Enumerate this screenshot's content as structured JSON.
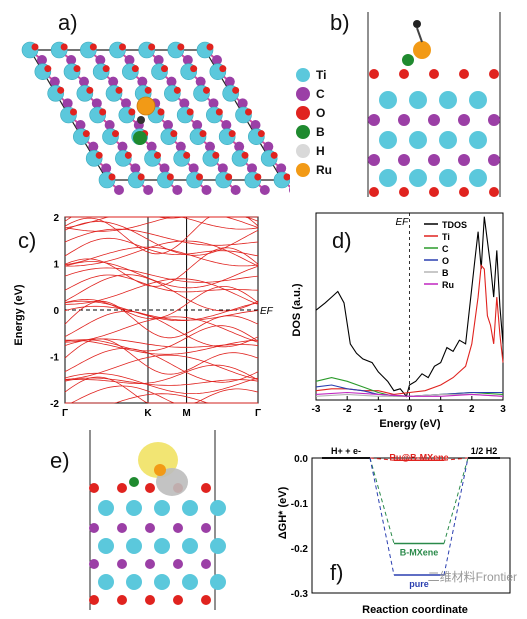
{
  "panels": {
    "a": "a)",
    "b": "b)",
    "c": "c)",
    "d": "d)",
    "e": "e)",
    "f": "f)"
  },
  "atom_legend": [
    {
      "label": "Ti",
      "color": "#5bc8dc"
    },
    {
      "label": "C",
      "color": "#9b3fa6"
    },
    {
      "label": "O",
      "color": "#e0231f"
    },
    {
      "label": "B",
      "color": "#1f8a2f"
    },
    {
      "label": "H",
      "color": "#d9d9d9"
    },
    {
      "label": "Ru",
      "color": "#f29a16"
    }
  ],
  "chart_data": [
    {
      "type": "line",
      "panel": "c",
      "ylabel": "Energy (eV)",
      "xticks": [
        "Γ",
        "K",
        "M",
        "Γ"
      ],
      "yticks": [
        "-2",
        "-1",
        "0",
        "1",
        "2"
      ],
      "ylim": [
        -2,
        2
      ],
      "fermi_label": "EF",
      "color": "#e0231f"
    },
    {
      "type": "line",
      "panel": "d",
      "ylabel": "DOS (a.u.)",
      "xlabel": "Energy (eV)",
      "fermi_label": "EF",
      "xlim": [
        -3,
        3
      ],
      "xticks": [
        "-3",
        "-2",
        "-1",
        "0",
        "1",
        "2",
        "3"
      ],
      "legend_placement": "top-right",
      "series": [
        {
          "name": "TDOS",
          "color": "#000000",
          "x": [
            -3,
            -2.7,
            -2.5,
            -2.3,
            -2.1,
            -1.9,
            -1.7,
            -1.5,
            -1.2,
            -1,
            -0.7,
            -0.5,
            -0.3,
            -0.1,
            0,
            0.2,
            0.4,
            0.6,
            0.8,
            1,
            1.2,
            1.4,
            1.6,
            1.8,
            2,
            2.1,
            2.2,
            2.3,
            2.4,
            2.5,
            2.6,
            2.7,
            2.8,
            2.9,
            3
          ],
          "y": [
            0.48,
            0.52,
            0.55,
            0.58,
            0.52,
            0.3,
            0.25,
            0.22,
            0.2,
            0.15,
            0.1,
            0.05,
            0.06,
            0.02,
            0.08,
            0.1,
            0.14,
            0.12,
            0.18,
            0.2,
            0.28,
            0.26,
            0.32,
            0.3,
            0.6,
            0.75,
            0.9,
            0.7,
            0.98,
            0.85,
            0.72,
            0.55,
            0.8,
            0.5,
            0.3
          ]
        },
        {
          "name": "Ti",
          "color": "#e0231f",
          "x": [
            -3,
            -2.5,
            -2,
            -1.5,
            -1,
            -0.5,
            0,
            0.5,
            1,
            1.4,
            1.6,
            1.8,
            2,
            2.2,
            2.3,
            2.4,
            2.5,
            2.6,
            2.7,
            2.8,
            2.9,
            3
          ],
          "y": [
            0.05,
            0.06,
            0.06,
            0.05,
            0.05,
            0.03,
            0.04,
            0.05,
            0.08,
            0.12,
            0.15,
            0.18,
            0.3,
            0.55,
            0.72,
            0.7,
            0.45,
            0.4,
            0.3,
            0.55,
            0.35,
            0.2
          ]
        },
        {
          "name": "C",
          "color": "#2a9a2a",
          "x": [
            -3,
            -2.5,
            -2,
            -1.5,
            -1,
            -0.5,
            0,
            1,
            2,
            3
          ],
          "y": [
            0.1,
            0.12,
            0.1,
            0.07,
            0.04,
            0.02,
            0.02,
            0.03,
            0.04,
            0.03
          ]
        },
        {
          "name": "O",
          "color": "#2a3fb0",
          "x": [
            -3,
            -2.5,
            -2,
            -1.5,
            -1,
            0,
            1,
            2,
            3
          ],
          "y": [
            0.07,
            0.08,
            0.06,
            0.05,
            0.03,
            0.02,
            0.03,
            0.04,
            0.04
          ]
        },
        {
          "name": "B",
          "color": "#b5b5b5",
          "x": [
            -3,
            -2,
            -1,
            0,
            1,
            2,
            3
          ],
          "y": [
            0.02,
            0.03,
            0.02,
            0.02,
            0.03,
            0.03,
            0.02
          ]
        },
        {
          "name": "Ru",
          "color": "#c026c0",
          "x": [
            -3,
            -2,
            -1,
            0,
            1,
            2,
            3
          ],
          "y": [
            0.03,
            0.04,
            0.03,
            0.02,
            0.02,
            0.03,
            0.02
          ]
        }
      ]
    },
    {
      "type": "line",
      "panel": "f",
      "ylabel": "ΔGH* (eV)",
      "xlabel": "Reaction coordinate",
      "yticks": [
        "0.0",
        "-0.1",
        "-0.2",
        "-0.3"
      ],
      "ylim": [
        -0.3,
        0.0
      ],
      "states": [
        "H+ + e-",
        "",
        "1/2 H2"
      ],
      "series": [
        {
          "name": "Ru@B-MXene",
          "color": "#e0231f",
          "values": [
            0,
            -0.005,
            0
          ]
        },
        {
          "name": "B-MXene",
          "color": "#2a8a4a",
          "values": [
            0,
            -0.19,
            0
          ]
        },
        {
          "name": "pure",
          "color": "#2a3fb0",
          "values": [
            0,
            -0.26,
            0
          ]
        }
      ]
    }
  ],
  "watermark": "二维材料Frontier"
}
